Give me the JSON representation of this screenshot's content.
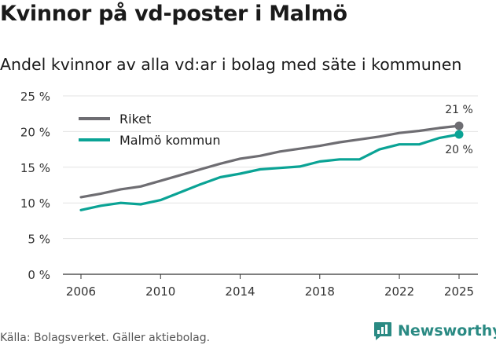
{
  "title": "Kvinnor på vd-poster i Malmö",
  "subtitle": "Andel kvinnor av alla vd:ar i bolag med säte i kommunen",
  "source": "Källa: Bolagsverket. Gäller aktiebolag.",
  "brand": {
    "name": "Newsworthy",
    "icon": "newsworthy-logo-icon",
    "color": "#2a8a83"
  },
  "chart_data": {
    "type": "line",
    "x": [
      2006,
      2007,
      2008,
      2009,
      2010,
      2011,
      2012,
      2013,
      2014,
      2015,
      2016,
      2017,
      2018,
      2019,
      2020,
      2021,
      2022,
      2023,
      2024,
      2025
    ],
    "series": [
      {
        "name": "Riket",
        "color": "#6e6d72",
        "values": [
          10.8,
          11.3,
          11.9,
          12.3,
          13.1,
          13.9,
          14.7,
          15.5,
          16.2,
          16.6,
          17.2,
          17.6,
          18.0,
          18.5,
          18.9,
          19.3,
          19.8,
          20.1,
          20.5,
          20.8
        ],
        "end_label": "21 %"
      },
      {
        "name": "Malmö kommun",
        "color": "#0aa395",
        "values": [
          9.0,
          9.6,
          10.0,
          9.8,
          10.4,
          11.5,
          12.6,
          13.6,
          14.1,
          14.7,
          14.9,
          15.1,
          15.8,
          16.1,
          16.1,
          17.5,
          18.2,
          18.2,
          19.1,
          19.6
        ],
        "end_label": "20 %"
      }
    ],
    "ylim": [
      0,
      25
    ],
    "yticks": [
      0,
      5,
      10,
      15,
      20,
      25
    ],
    "ytick_labels": [
      "0 %",
      "5 %",
      "10 %",
      "15 %",
      "20 %",
      "25 %"
    ],
    "xticks": [
      2006,
      2010,
      2014,
      2018,
      2022,
      2025
    ],
    "xtick_labels": [
      "2006",
      "2010",
      "2014",
      "2018",
      "2022",
      "2025"
    ],
    "grid": true,
    "legend": "top-left"
  }
}
